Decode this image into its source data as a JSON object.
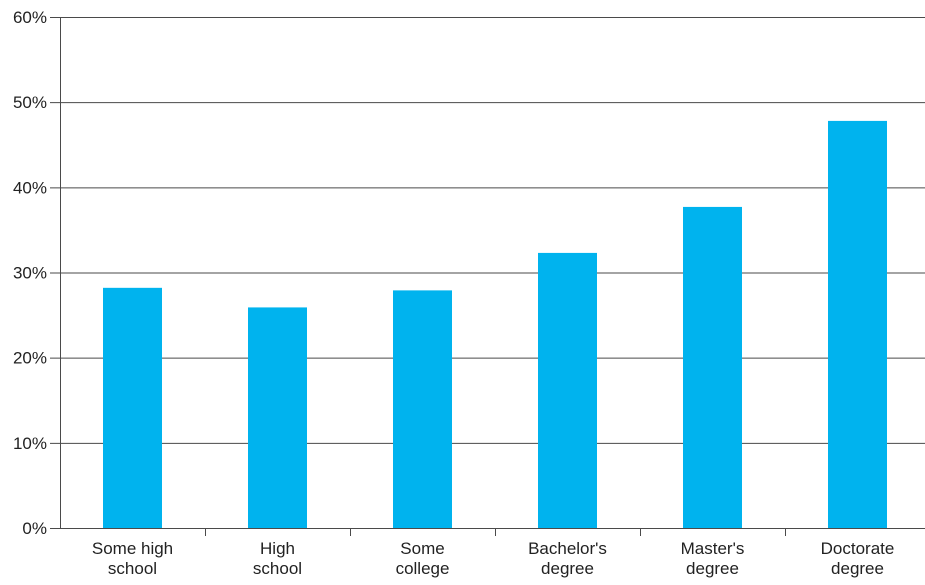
{
  "chart_data": {
    "type": "bar",
    "title": "",
    "xlabel": "",
    "ylabel": "",
    "categories": [
      [
        "Some high",
        "school"
      ],
      [
        "High",
        "school"
      ],
      [
        "Some",
        "college"
      ],
      [
        "Bachelor's",
        "degree"
      ],
      [
        "Master's",
        "degree"
      ],
      [
        "Doctorate",
        "degree"
      ]
    ],
    "values": [
      28.2,
      25.9,
      27.9,
      32.3,
      37.7,
      47.8
    ],
    "ylim": [
      0,
      60
    ],
    "yticks": [
      0,
      10,
      20,
      30,
      40,
      50,
      60
    ],
    "ytick_labels": [
      "0%",
      "10%",
      "20%",
      "30%",
      "40%",
      "50%",
      "60%"
    ],
    "grid": true,
    "legend": "none",
    "colors": {
      "bar": "#00B3EE",
      "grid": "#4a4a4a",
      "axis": "#4a4a4a",
      "text": "#222222"
    }
  }
}
